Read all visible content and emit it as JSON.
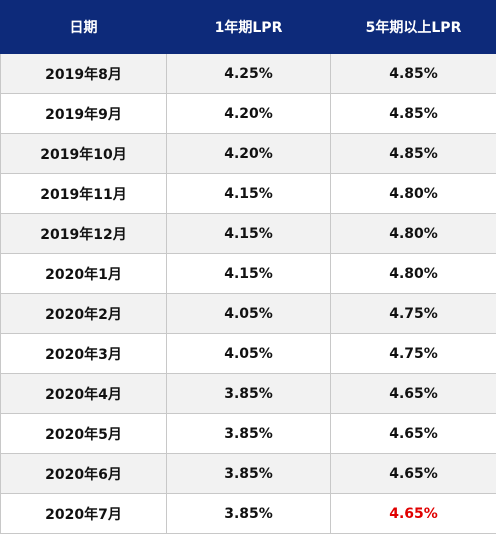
{
  "table": {
    "headers": [
      "日期",
      "1年期LPR",
      "5年期以上LPR"
    ],
    "rows": [
      [
        "2019年8月",
        "4.25%",
        "4.85%"
      ],
      [
        "2019年9月",
        "4.20%",
        "4.85%"
      ],
      [
        "2019年10月",
        "4.20%",
        "4.85%"
      ],
      [
        "2019年11月",
        "4.15%",
        "4.80%"
      ],
      [
        "2019年12月",
        "4.15%",
        "4.80%"
      ],
      [
        "2020年1月",
        "4.15%",
        "4.80%"
      ],
      [
        "2020年2月",
        "4.05%",
        "4.75%"
      ],
      [
        "2020年3月",
        "4.05%",
        "4.75%"
      ],
      [
        "2020年4月",
        "3.85%",
        "4.65%"
      ],
      [
        "2020年5月",
        "3.85%",
        "4.65%"
      ],
      [
        "2020年6月",
        "3.85%",
        "4.65%"
      ],
      [
        "2020年7月",
        "3.85%",
        "4.65%"
      ]
    ]
  },
  "colors": {
    "header_bg": "#0d2a7a",
    "header_text": "#ffffff",
    "stripe_bg": "#f2f2f2",
    "highlight_text": "#e00000"
  }
}
